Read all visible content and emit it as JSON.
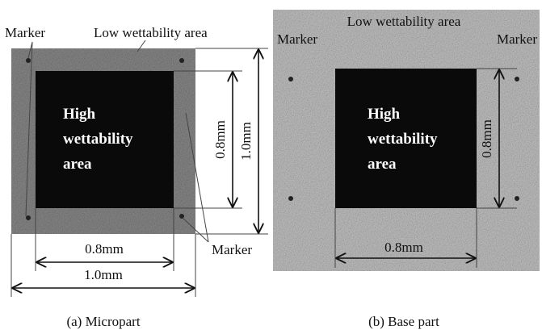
{
  "panels": [
    {
      "caption": "(a) Micropart",
      "labels": {
        "marker_top": "Marker",
        "low_area": "Low wettability area",
        "marker_side": "Marker"
      },
      "high_area": [
        "High",
        "wettability",
        "area"
      ],
      "dims": {
        "inner_vertical": "0.8mm",
        "outer_vertical": "1.0mm",
        "inner_horizontal": "0.8mm",
        "outer_horizontal": "1.0mm"
      }
    },
    {
      "caption": "(b) Base part",
      "labels": {
        "low_area": "Low wettability area",
        "marker_left": "Marker",
        "marker_right": "Marker"
      },
      "high_area": [
        "High",
        "wettability",
        "area"
      ],
      "dims": {
        "inner_vertical": "0.8mm",
        "inner_horizontal": "0.8mm"
      }
    }
  ]
}
